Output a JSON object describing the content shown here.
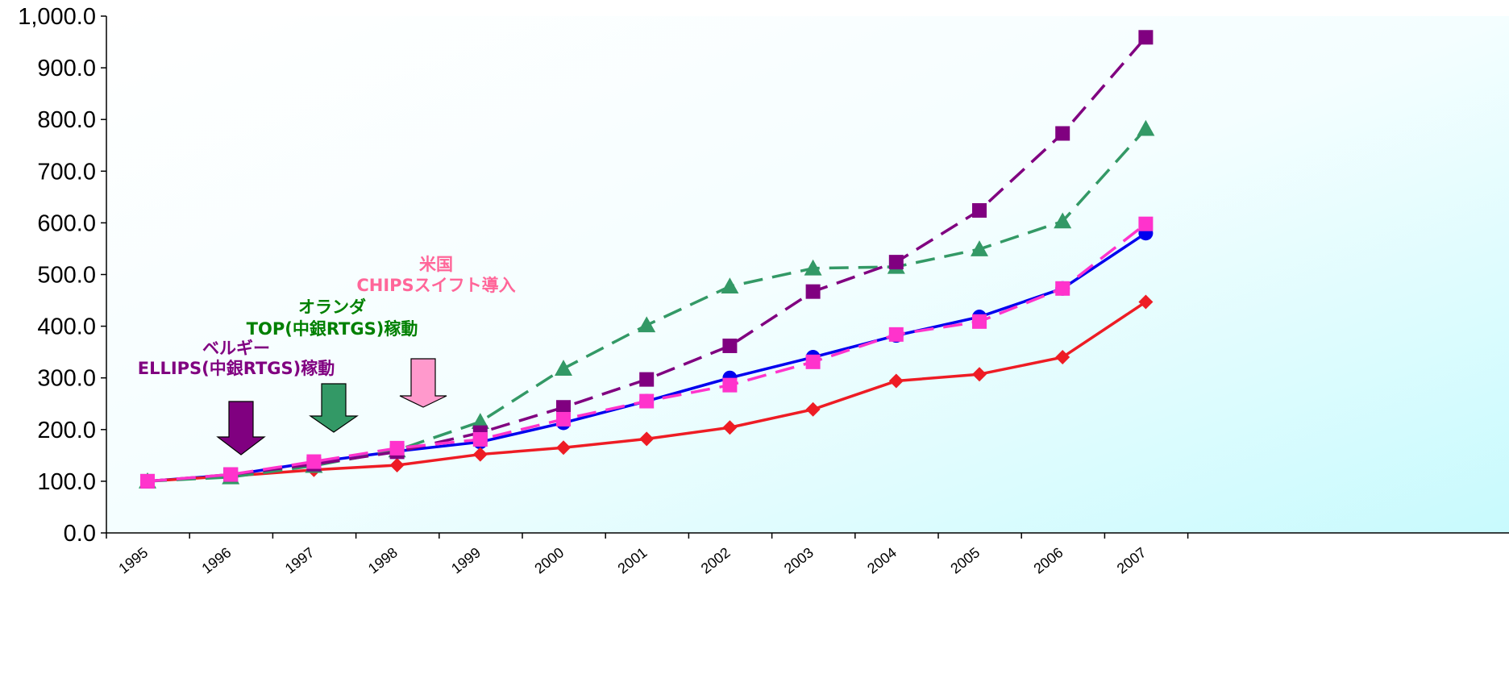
{
  "chart_data": {
    "type": "line",
    "title": "",
    "xlabel": "",
    "ylabel": "",
    "x": [
      "1995",
      "1996",
      "1997",
      "1998",
      "1999",
      "2000",
      "2001",
      "2002",
      "2003",
      "2004",
      "2005",
      "2006",
      "2007"
    ],
    "ylim": [
      0,
      1000
    ],
    "yticks": [
      "0.0",
      "100.0",
      "200.0",
      "300.0",
      "400.0",
      "500.0",
      "600.0",
      "700.0",
      "800.0",
      "900.0",
      "1,000.0"
    ],
    "grid": false,
    "legend": "none",
    "series": [
      {
        "color": "#0000ee",
        "dash": "solid",
        "marker": "circle",
        "values": [
          100,
          112,
          137,
          158,
          176,
          213,
          255,
          300,
          340,
          382,
          418,
          473,
          580
        ]
      },
      {
        "color": "#ee1c24",
        "dash": "solid",
        "marker": "diamond",
        "values": [
          100,
          110,
          122,
          131,
          152,
          165,
          182,
          204,
          239,
          294,
          307,
          340,
          447
        ]
      },
      {
        "color": "#339966",
        "dash": "dashed",
        "marker": "triangle",
        "values": [
          100,
          108,
          130,
          160,
          215,
          318,
          402,
          477,
          512,
          515,
          549,
          603,
          782
        ]
      },
      {
        "color": "#800080",
        "dash": "dashed",
        "marker": "square",
        "values": [
          100,
          113,
          133,
          157,
          194,
          243,
          297,
          362,
          467,
          524,
          624,
          773,
          959
        ]
      },
      {
        "color": "#ff33cc",
        "dash": "dashed",
        "marker": "square",
        "values": [
          100,
          113,
          138,
          164,
          181,
          220,
          255,
          286,
          331,
          384,
          409,
          473,
          598
        ]
      }
    ],
    "annotations": [
      {
        "lines": [
          "米国",
          "CHIPSスイフト導入"
        ],
        "color": "#ff6699",
        "arrow_color": "#ff99cc",
        "anchor_year": "1998"
      },
      {
        "lines": [
          "オランダ",
          "TOP(中銀RTGS)稼動"
        ],
        "color": "#008000",
        "arrow_color": "#339966",
        "anchor_year": "1997"
      },
      {
        "lines": [
          "ベルギー",
          "ELLIPS(中銀RTGS)稼動"
        ],
        "color": "#800080",
        "arrow_color": "#800080",
        "anchor_year": "1996"
      }
    ]
  }
}
